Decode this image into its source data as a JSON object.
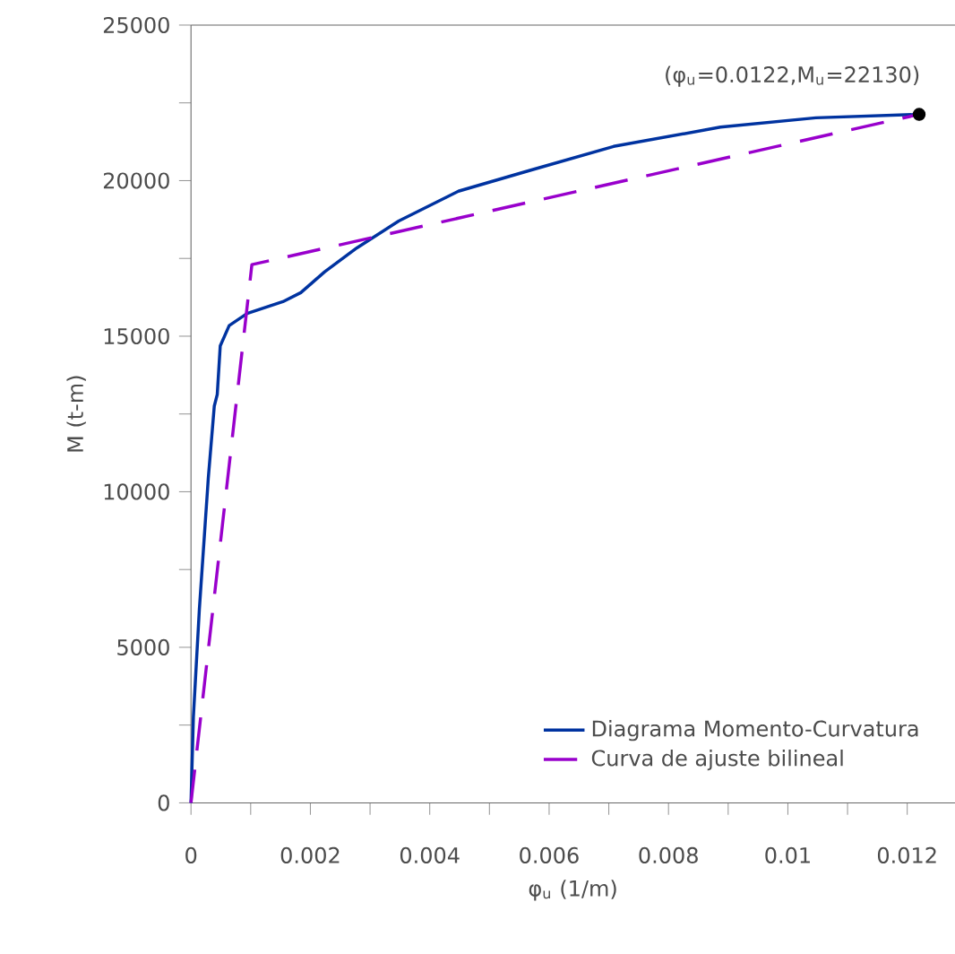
{
  "chart_data": {
    "type": "line",
    "xlabel": "φ$_{u}$ (1/m)",
    "ylabel": "M (t-m)",
    "xlim": [
      0,
      0.0128
    ],
    "ylim": [
      0,
      25000
    ],
    "xticks": [
      0,
      {
        "value": 0.001,
        "label": null
      },
      {
        "value": 0.002,
        "label": "0.002"
      },
      {
        "value": 0.003,
        "label": null
      },
      {
        "value": 0.004,
        "label": "0.004"
      },
      {
        "value": 0.005,
        "label": null
      },
      {
        "value": 0.006,
        "label": "0.006"
      },
      {
        "value": 0.007,
        "label": null
      },
      {
        "value": 0.008,
        "label": "0.008"
      },
      {
        "value": 0.009,
        "label": null
      },
      {
        "value": 0.01,
        "label": "0.01"
      },
      {
        "value": 0.011,
        "label": null
      },
      {
        "value": 0.012,
        "label": "0.012"
      }
    ],
    "yticks": [
      0,
      {
        "value": 2500,
        "label": null
      },
      5000,
      {
        "value": 7500,
        "label": null
      },
      10000,
      {
        "value": 12500,
        "label": null
      },
      15000,
      {
        "value": 17500,
        "label": null
      },
      20000,
      {
        "value": 22500,
        "label": null
      },
      25000
    ],
    "legend": "bottom right",
    "series": [
      {
        "name": "Diagrama Momento-Curvatura",
        "color": "#0033a0",
        "line_style": "solid",
        "x": [
          0,
          4e-05,
          0.00014,
          0.00029,
          0.00039,
          0.00044,
          0.00049,
          0.00064,
          0.00094,
          0.00154,
          0.00184,
          0.00224,
          0.00278,
          0.00348,
          0.00448,
          0.00568,
          0.00708,
          0.00887,
          0.01047,
          0.0122
        ],
        "values": [
          0,
          2760,
          6220,
          10440,
          12750,
          13130,
          14690,
          15340,
          15730,
          16110,
          16400,
          17070,
          17840,
          18700,
          19660,
          20330,
          21100,
          21720,
          22020,
          22130
        ]
      },
      {
        "name": "Curva de ajuste bilineal",
        "color": "#9900cc",
        "line_style": "dashed",
        "x": [
          0,
          0.00102,
          0.0122
        ],
        "values": [
          0,
          17300,
          22130
        ]
      },
      {
        "type": "scatter",
        "color": "#000000",
        "marker": "circle",
        "x": [
          0.0122
        ],
        "values": [
          22130
        ]
      }
    ],
    "annotations": [
      {
        "text": "(φ$_{u}$=0.0122,M$_{u}$=22130)",
        "x": 0.0122,
        "y": 22130
      }
    ]
  }
}
